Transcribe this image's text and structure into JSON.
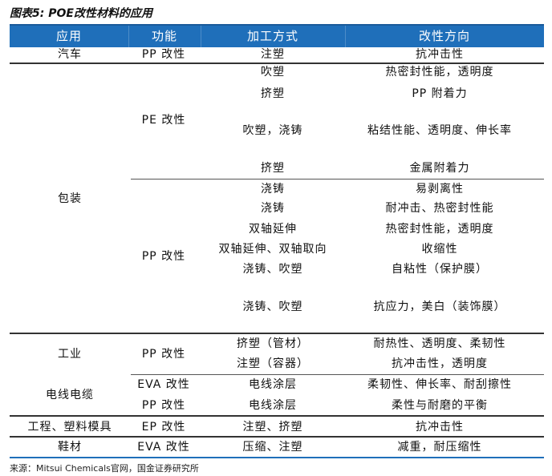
{
  "title": "图表5: POE改性材料的应用",
  "header": [
    "应用",
    "功能",
    "加工方式",
    "改性方向"
  ],
  "rows": [
    {
      "application": "汽车",
      "function": "PP 改性",
      "process": "注塑",
      "direction": "抗冲击性"
    },
    {
      "application": "包装",
      "function": "PE 改性",
      "process": "吹塑",
      "direction": "热密封性能，透明度"
    },
    {
      "process": "挤塑",
      "direction": "PP 附着力"
    },
    {
      "process": "吹塑，浇铸",
      "direction": "粘结性能、透明度、伸长率"
    },
    {
      "process": "挤塑",
      "direction": "金属附着力"
    },
    {
      "function": "PP 改性",
      "process": "浇铸",
      "direction": "易剥离性"
    },
    {
      "process": "浇铸",
      "direction": "耐冲击、热密封性能"
    },
    {
      "process": "双轴延伸",
      "direction": "热密封性能，透明度"
    },
    {
      "process": "双轴延伸、双轴取向",
      "direction": "收缩性"
    },
    {
      "process": "浇铸、吹塑",
      "direction": "自粘性（保护膜）"
    },
    {
      "process": "浇铸、吹塑",
      "direction": "抗应力，美白（装饰膜）"
    },
    {
      "application": "工业",
      "function": "PP 改性",
      "process": "挤塑（管材）",
      "direction": "耐热性、透明度、柔韧性"
    },
    {
      "process": "注塑（容器）",
      "direction": "抗冲击性，透明度"
    },
    {
      "application": "电线电缆",
      "function": "EVA 改性",
      "process": "电线涂层",
      "direction": "柔韧性、伸长率、耐刮擦性"
    },
    {
      "function": "PP 改性",
      "process": "电线涂层",
      "direction": "柔性与耐磨的平衡"
    },
    {
      "application": "工程、塑料模具",
      "function": "EP 改性",
      "process": "注塑、挤塑",
      "direction": "抗冲击性"
    },
    {
      "application": "鞋材",
      "function": "EVA 改性",
      "process": "压缩、注塑",
      "direction": "减重，耐压缩性"
    }
  ],
  "source": "来源：Mitsui Chemicals官网，国金证券研究所",
  "colors": {
    "header_bg": "#1f6fba",
    "header_text": "#ffffff"
  }
}
